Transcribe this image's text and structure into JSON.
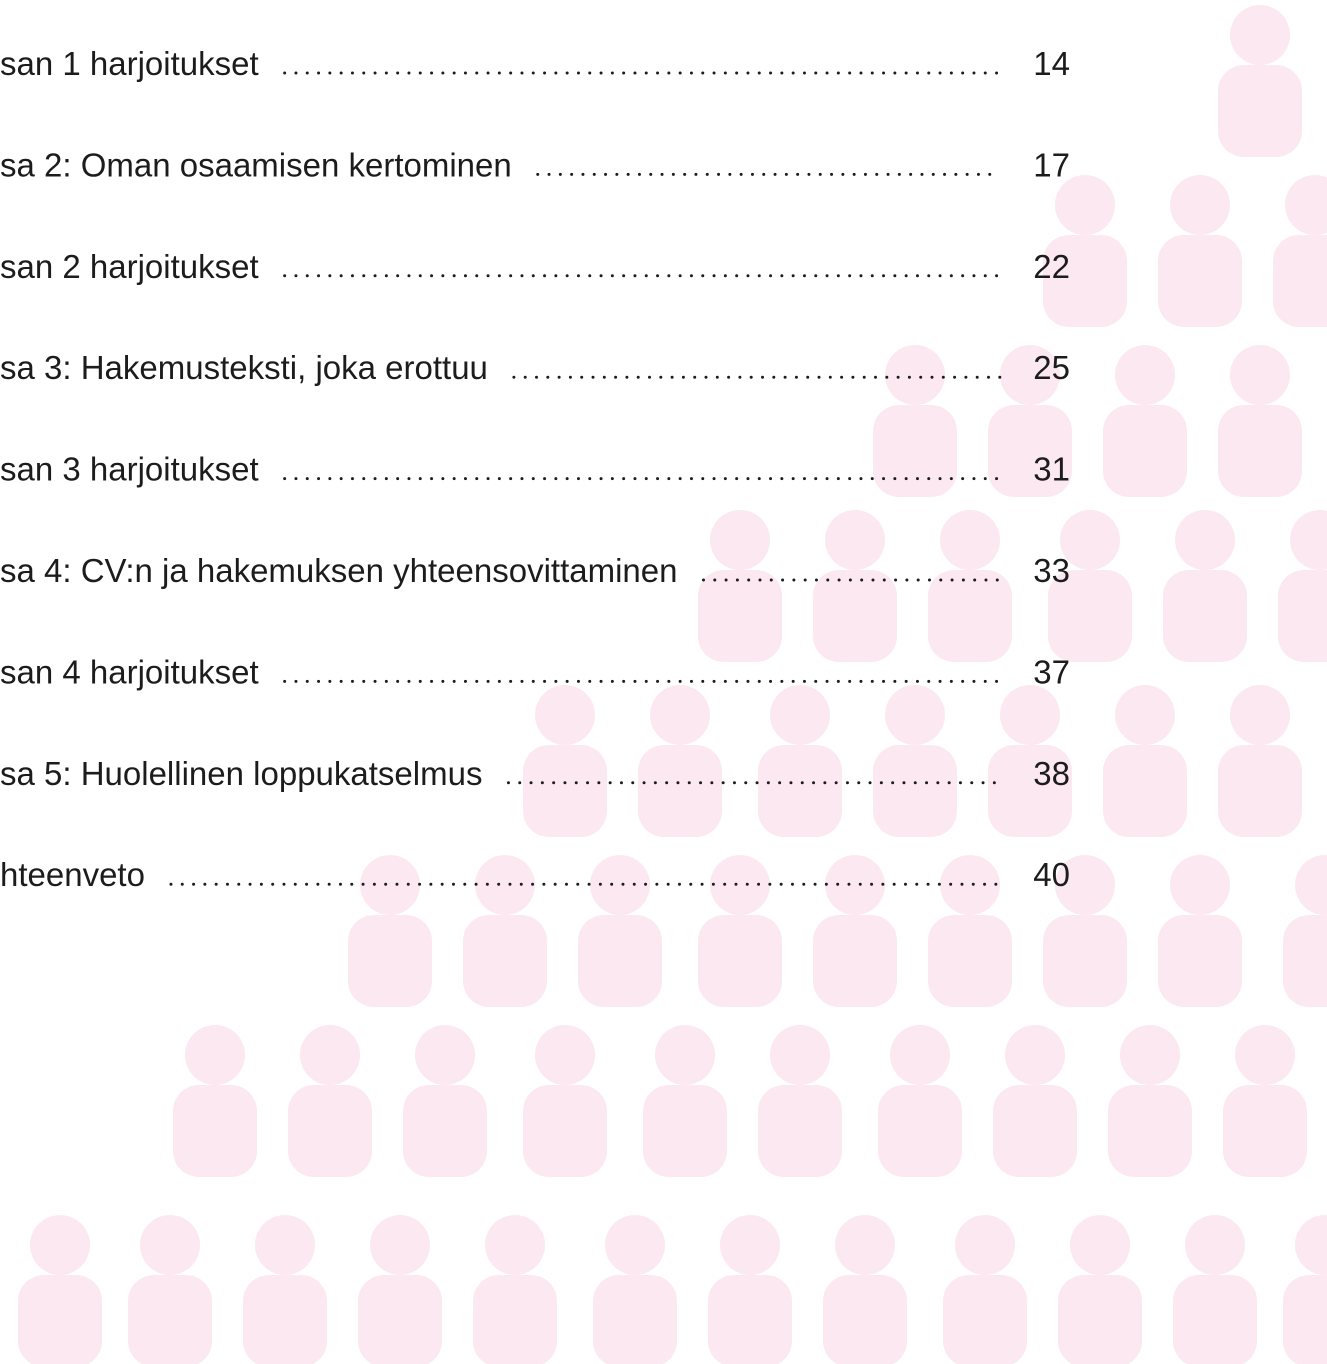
{
  "toc": {
    "entries": [
      {
        "title": "san 1 harjoitukset",
        "page": 14
      },
      {
        "title": "sa 2: Oman osaamisen kertominen",
        "page": 17
      },
      {
        "title": "san 2 harjoitukset",
        "page": 22
      },
      {
        "title": "sa 3: Hakemusteksti, joka erottuu",
        "page": 25
      },
      {
        "title": "san 3 harjoitukset",
        "page": 31
      },
      {
        "title": "sa 4: CV:n ja hakemuksen yhteensovittaminen",
        "page": 33
      },
      {
        "title": "san 4 harjoitukset",
        "page": 37
      },
      {
        "title": "sa 5: Huolellinen loppukatselmus",
        "page": 38
      },
      {
        "title": "hteenveto",
        "page": 40
      }
    ]
  }
}
